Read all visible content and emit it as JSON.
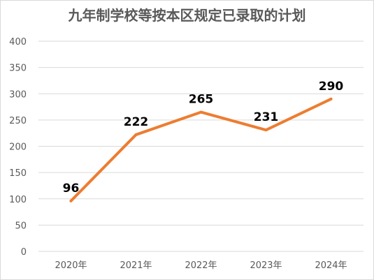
{
  "chart_data": {
    "type": "line",
    "title": "九年制学校等按本区规定已录取的计划",
    "categories": [
      "2020年",
      "2021年",
      "2022年",
      "2023年",
      "2024年"
    ],
    "series": [
      {
        "values": [
          96,
          222,
          265,
          231,
          290
        ],
        "color": "#ed7d31"
      }
    ],
    "ylim": [
      0,
      400
    ],
    "yticks": [
      0,
      50,
      100,
      150,
      200,
      250,
      300,
      350,
      400
    ],
    "grid": true,
    "legend": "none"
  }
}
